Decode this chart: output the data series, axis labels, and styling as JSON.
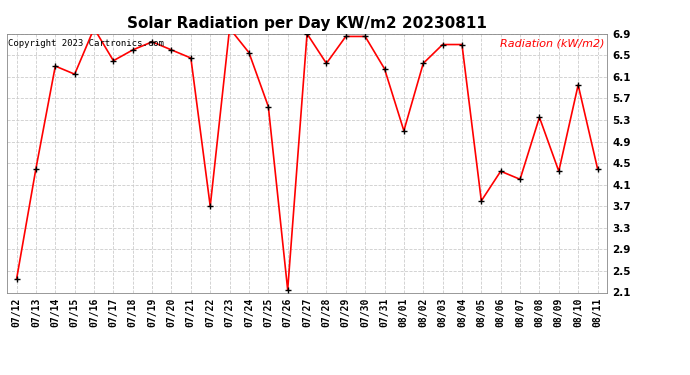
{
  "title": "Solar Radiation per Day KW/m2 20230811",
  "copyright_text": "Copyright 2023 Cartronics.com",
  "legend_label": "Radiation (kW/m2)",
  "dates": [
    "07/12",
    "07/13",
    "07/14",
    "07/15",
    "07/16",
    "07/17",
    "07/18",
    "07/19",
    "07/20",
    "07/21",
    "07/22",
    "07/23",
    "07/24",
    "07/25",
    "07/26",
    "07/27",
    "07/28",
    "07/29",
    "07/30",
    "07/31",
    "08/01",
    "08/02",
    "08/03",
    "08/04",
    "08/05",
    "08/06",
    "08/07",
    "08/08",
    "08/09",
    "08/10",
    "08/11"
  ],
  "values": [
    2.35,
    4.4,
    6.3,
    6.15,
    7.0,
    6.4,
    6.6,
    6.75,
    6.6,
    6.45,
    3.7,
    7.0,
    6.55,
    5.55,
    2.15,
    6.9,
    6.35,
    6.85,
    6.85,
    6.25,
    5.1,
    6.35,
    6.7,
    6.7,
    3.8,
    4.35,
    4.2,
    5.35,
    4.35,
    5.95,
    4.4
  ],
  "ylim": [
    2.1,
    6.9
  ],
  "yticks": [
    2.1,
    2.5,
    2.9,
    3.3,
    3.7,
    4.1,
    4.5,
    4.9,
    5.3,
    5.7,
    6.1,
    6.5,
    6.9
  ],
  "line_color": "red",
  "marker_color": "black",
  "bg_color": "#ffffff",
  "grid_color": "#cccccc",
  "title_color": "#000000",
  "legend_color": "red",
  "copyright_color": "#000000",
  "title_fontsize": 11,
  "copyright_fontsize": 6.5,
  "legend_fontsize": 8,
  "tick_fontsize": 7,
  "ytick_fontsize": 7.5
}
